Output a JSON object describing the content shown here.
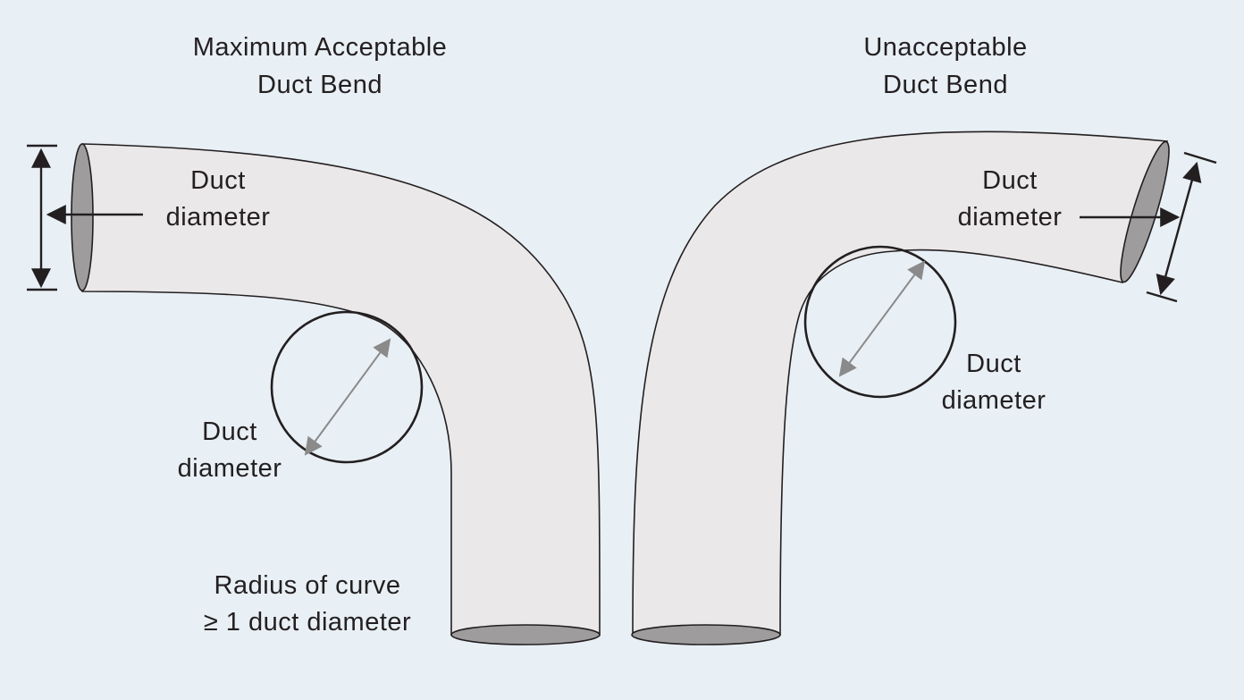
{
  "left_panel": {
    "title_line1": "Maximum Acceptable",
    "title_line2": "Duct Bend",
    "end_label_line1": "Duct",
    "end_label_line2": "diameter",
    "circle_label_line1": "Duct",
    "circle_label_line2": "diameter",
    "radius_label_line1": "Radius of curve",
    "radius_label_line2": "≥ 1 duct diameter"
  },
  "right_panel": {
    "title_line1": "Unacceptable",
    "title_line2": "Duct Bend",
    "end_label_line1": "Duct",
    "end_label_line2": "diameter",
    "circle_label_line1": "Duct",
    "circle_label_line2": "diameter"
  },
  "colors": {
    "background": "#e8eff5",
    "duct_fill": "#ebe8e9",
    "opening_fill": "#9e9c9d",
    "line": "#231f20",
    "gray_arrow": "#8a8a8a"
  }
}
